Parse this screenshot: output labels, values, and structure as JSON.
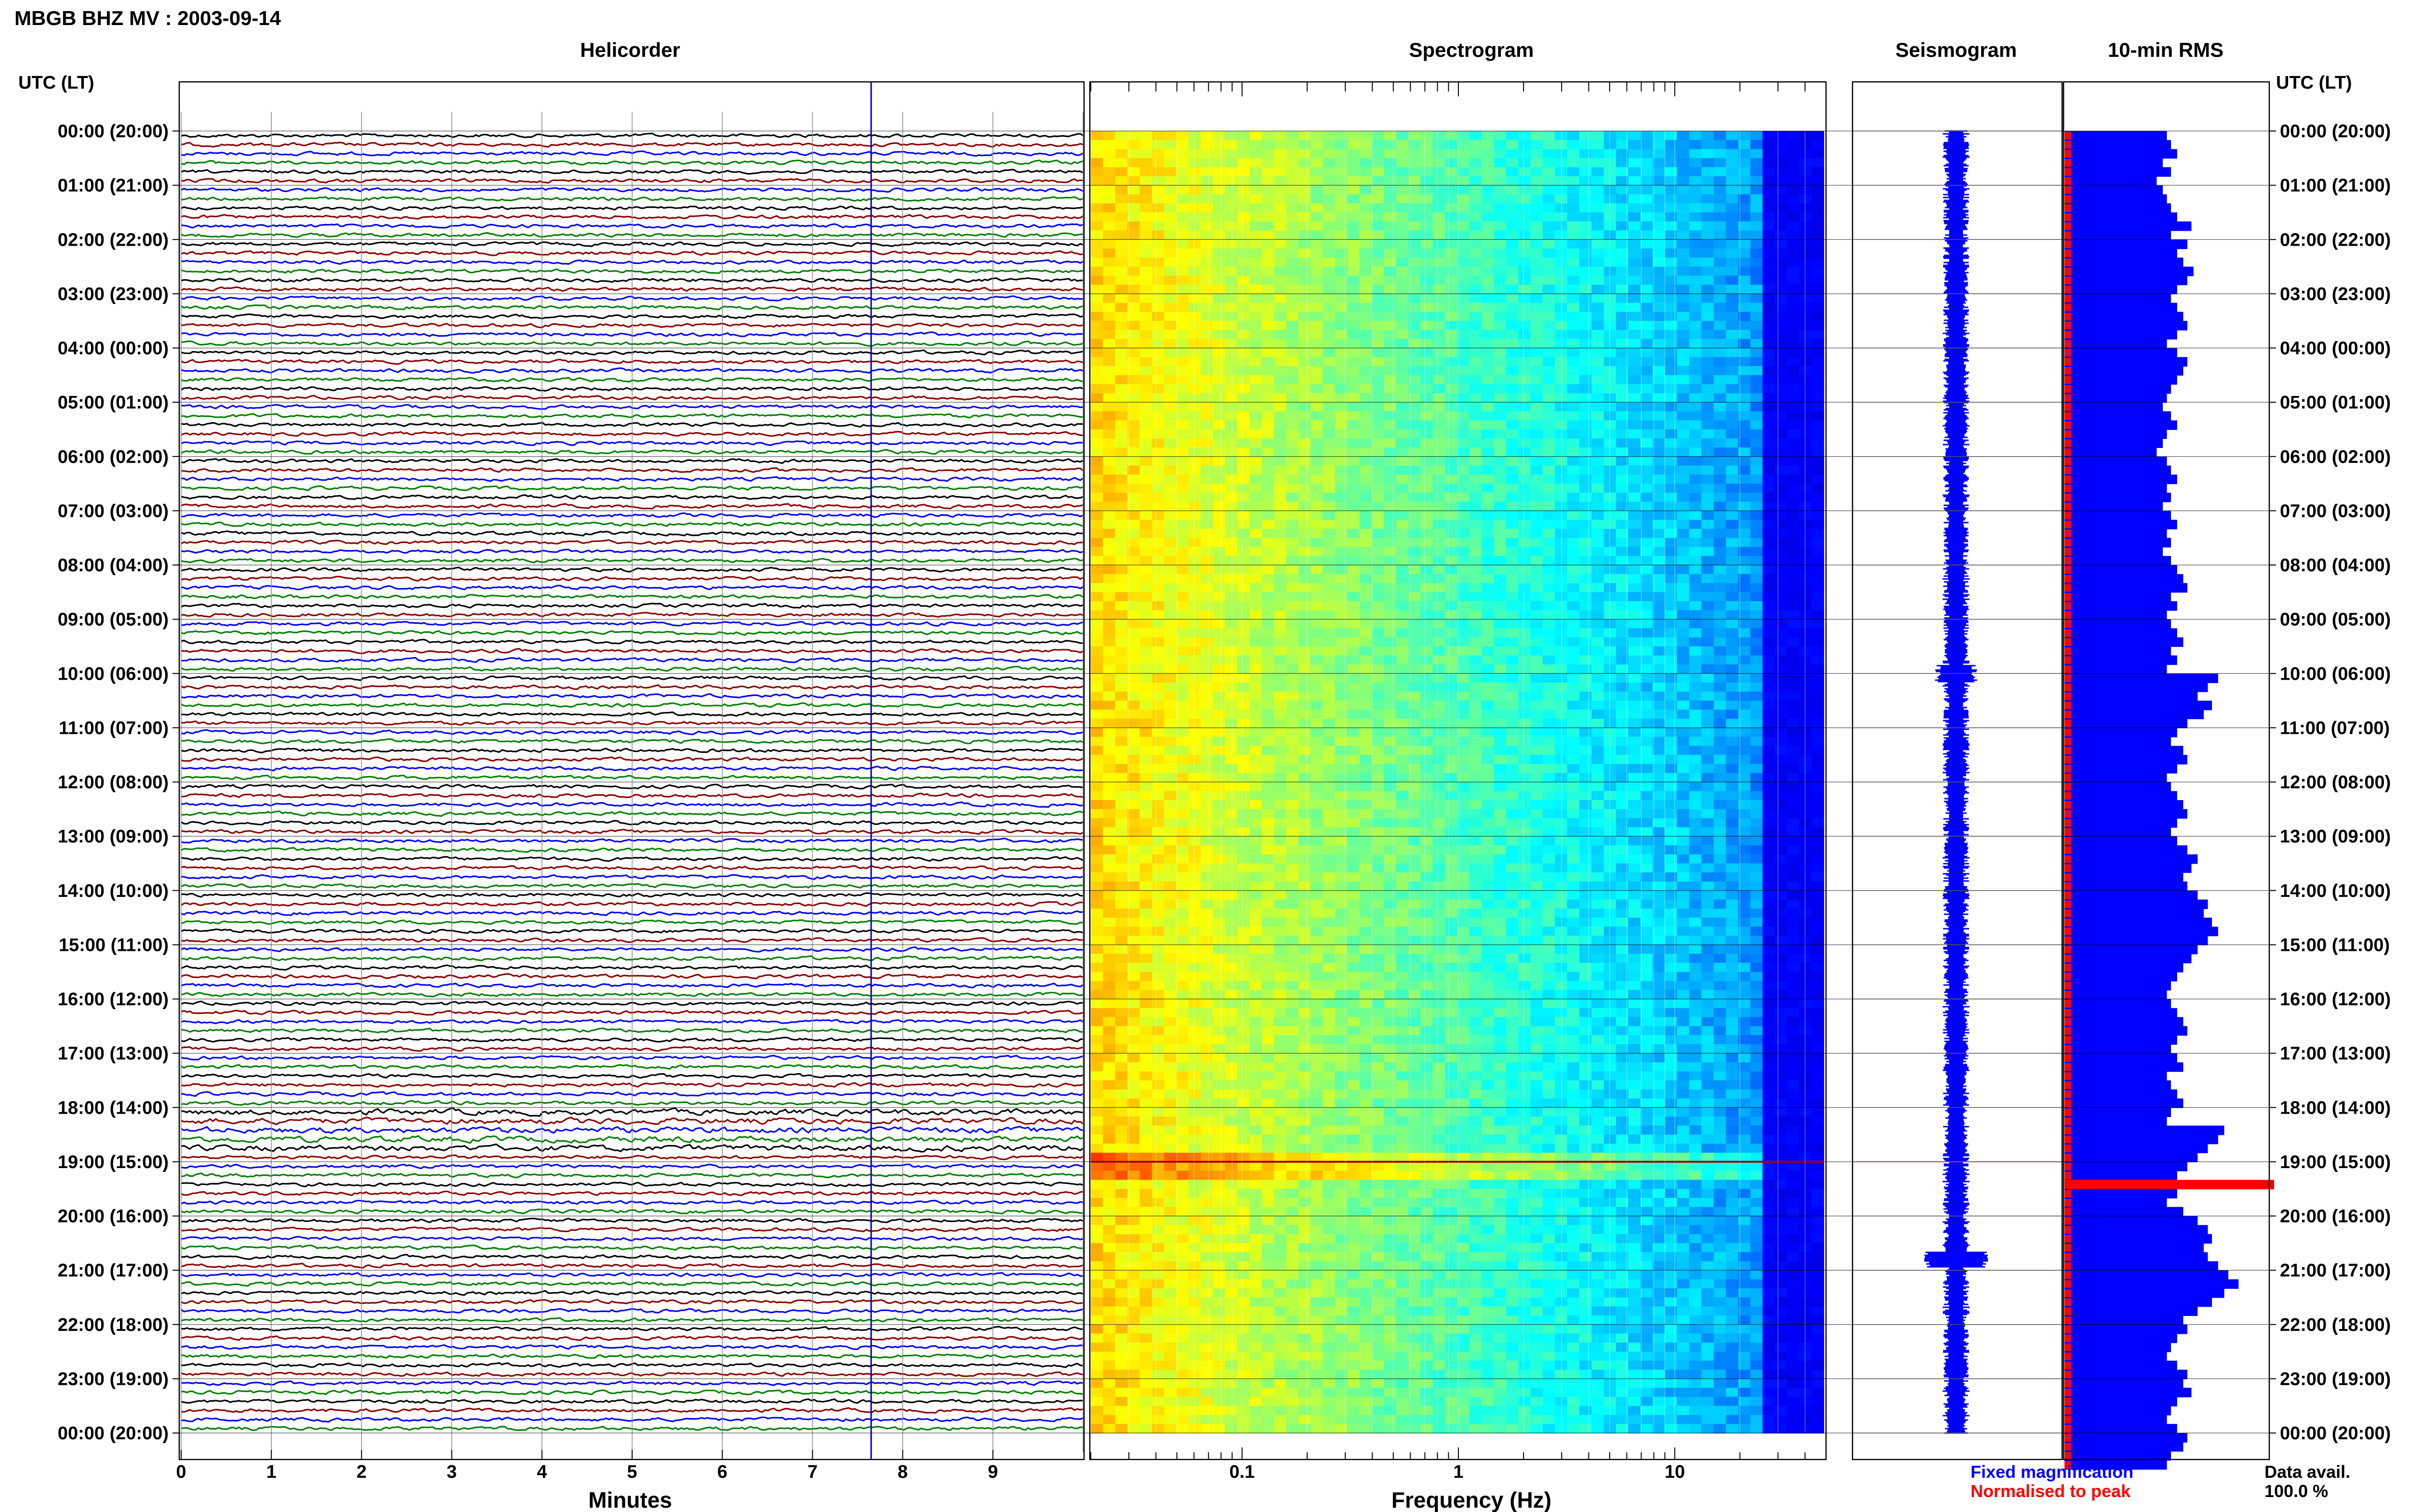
{
  "header": {
    "title": "MBGB BHZ MV : 2003-09-14"
  },
  "panels": {
    "helicorder": "Helicorder",
    "spectrogram": "Spectrogram",
    "seismogram": "Seismogram",
    "rms": "10-min RMS"
  },
  "axes": {
    "left_header": "UTC (LT)",
    "right_header": "UTC (LT)",
    "helicorder_xlabel": "Minutes",
    "spectrogram_xlabel": "Frequency (Hz)"
  },
  "legend": {
    "fixed": "Fixed magnification",
    "fixed_color": "#0000ff",
    "normalised": "Normalised to peak",
    "normalised_color": "#ff0000",
    "avail_label": "Data avail.",
    "avail_value": "100.0 %"
  },
  "colors": {
    "trace_cycle": [
      "#000000",
      "#8b0000",
      "#0000ff",
      "#008000"
    ],
    "rms_bar": "#0000ff",
    "rms_norm": "#ff0000",
    "marker_line": "#0000aa"
  },
  "chart_data": [
    {
      "type": "line",
      "name": "Helicorder",
      "title": "Helicorder",
      "xlabel": "Minutes",
      "ylabel": "UTC (LT)",
      "xlim": [
        0,
        10
      ],
      "x_ticks": [
        "0",
        "1",
        "2",
        "3",
        "4",
        "5",
        "6",
        "7",
        "8",
        "9"
      ],
      "y_tick_labels": [
        "00:00 (20:00)",
        "01:00 (21:00)",
        "02:00 (22:00)",
        "03:00 (23:00)",
        "04:00 (00:00)",
        "05:00 (01:00)",
        "06:00 (02:00)",
        "07:00 (03:00)",
        "08:00 (04:00)",
        "09:00 (05:00)",
        "10:00 (06:00)",
        "11:00 (07:00)",
        "12:00 (08:00)",
        "13:00 (09:00)",
        "14:00 (10:00)",
        "15:00 (11:00)",
        "16:00 (12:00)",
        "17:00 (13:00)",
        "18:00 (14:00)",
        "19:00 (15:00)",
        "20:00 (16:00)",
        "21:00 (17:00)",
        "22:00 (18:00)",
        "23:00 (19:00)",
        "00:00 (20:00)"
      ],
      "traces_per_hour": 6,
      "trace_colors_cycle": [
        "black",
        "darkred",
        "blue",
        "green"
      ],
      "marker_minute": 7.65
    },
    {
      "type": "heatmap",
      "name": "Spectrogram",
      "title": "Spectrogram",
      "xlabel": "Frequency (Hz)",
      "x_scale": "log",
      "xlim": [
        0.02,
        50
      ],
      "x_tick_labels": [
        "0.1",
        "1",
        "10"
      ],
      "data_max_frequency": 35,
      "colormap": "jet",
      "event_hour_utc": 19.0
    },
    {
      "type": "line",
      "name": "Seismogram",
      "title": "Seismogram",
      "note": "24-hour compressed trace",
      "event_hour_utc": 19.0
    },
    {
      "type": "bar",
      "name": "10-min RMS",
      "title": "10-min RMS",
      "orientation": "horizontal",
      "bins_per_hour": 6,
      "relative_values": [
        0.5,
        0.52,
        0.55,
        0.48,
        0.52,
        0.45,
        0.48,
        0.5,
        0.52,
        0.55,
        0.62,
        0.52,
        0.6,
        0.55,
        0.58,
        0.63,
        0.6,
        0.55,
        0.52,
        0.55,
        0.58,
        0.6,
        0.55,
        0.5,
        0.55,
        0.6,
        0.58,
        0.55,
        0.52,
        0.5,
        0.48,
        0.52,
        0.55,
        0.5,
        0.48,
        0.45,
        0.5,
        0.52,
        0.55,
        0.5,
        0.52,
        0.48,
        0.52,
        0.55,
        0.5,
        0.52,
        0.48,
        0.52,
        0.55,
        0.58,
        0.6,
        0.52,
        0.55,
        0.5,
        0.52,
        0.55,
        0.58,
        0.52,
        0.55,
        0.5,
        0.75,
        0.7,
        0.65,
        0.72,
        0.68,
        0.6,
        0.55,
        0.52,
        0.58,
        0.6,
        0.55,
        0.5,
        0.52,
        0.55,
        0.58,
        0.6,
        0.55,
        0.52,
        0.55,
        0.6,
        0.65,
        0.62,
        0.58,
        0.6,
        0.65,
        0.7,
        0.68,
        0.72,
        0.75,
        0.7,
        0.65,
        0.62,
        0.58,
        0.55,
        0.52,
        0.5,
        0.52,
        0.55,
        0.58,
        0.6,
        0.55,
        0.52,
        0.55,
        0.58,
        0.5,
        0.52,
        0.55,
        0.58,
        0.52,
        0.5,
        0.78,
        0.75,
        0.7,
        0.65,
        0.6,
        0.55,
        1.0,
        0.55,
        0.5,
        0.58,
        0.65,
        0.7,
        0.72,
        0.68,
        0.7,
        0.75,
        0.8,
        0.85,
        0.78,
        0.72,
        0.65,
        0.58,
        0.6,
        0.55,
        0.52,
        0.5,
        0.55,
        0.6,
        0.58,
        0.62,
        0.55,
        0.52,
        0.5,
        0.55,
        0.6,
        0.58,
        0.52,
        0.5
      ],
      "normalised_column": true
    }
  ]
}
